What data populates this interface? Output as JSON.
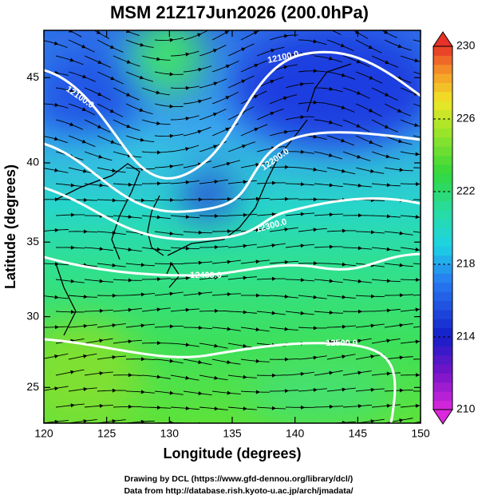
{
  "chart_data": {
    "type": "map",
    "title": "MSM 21Z17Jun2026 (200.0hPa)",
    "xlabel": "Longitude (degrees)",
    "ylabel": "Latitude  (degrees)",
    "projection": "mercator",
    "xlim": [
      120,
      150
    ],
    "xticks": [
      120,
      125,
      130,
      135,
      140,
      145,
      150
    ],
    "ylim": [
      22.4,
      47.6
    ],
    "yticks": [
      25,
      30,
      35,
      40,
      45
    ],
    "colorbar": {
      "lim": [
        210,
        230
      ],
      "ticks": [
        210,
        214,
        218,
        222,
        226,
        230
      ]
    },
    "contours": [
      {
        "value": 12100,
        "label": "12100.0"
      },
      {
        "value": 12200,
        "label": "12200.0"
      },
      {
        "value": 12300,
        "label": "12300.0"
      },
      {
        "value": 12400,
        "label": "12400.0"
      },
      {
        "value": 12500,
        "label": "12500.0"
      }
    ]
  },
  "footer": [
    "Drawing by DCL (https://www.gfd-dennou.org/library/dcl/)",
    "Data from http://database.rish.kyoto-u.ac.jp/arch/jmadata/"
  ]
}
